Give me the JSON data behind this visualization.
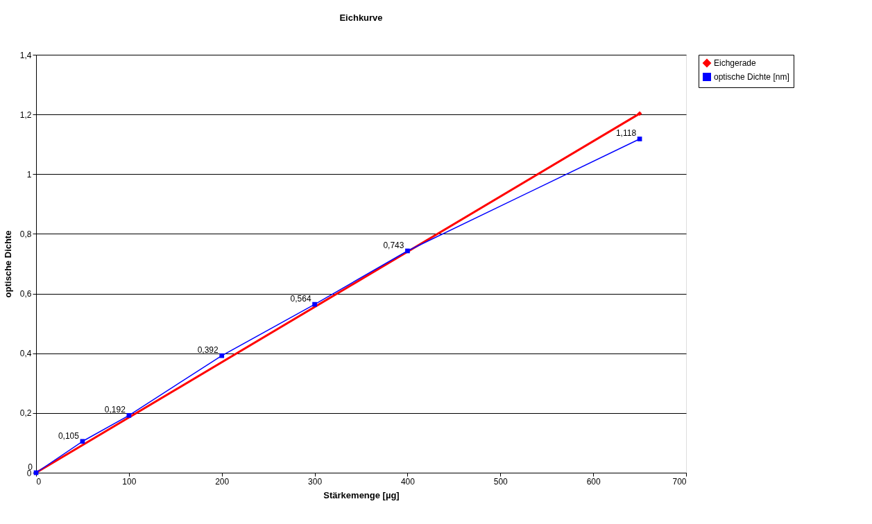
{
  "chart_data": {
    "type": "line",
    "title": "Eichkurve",
    "xlabel": "Stärkemenge [µg]",
    "ylabel": "optische Dichte",
    "xlim": [
      0,
      700
    ],
    "xticks": [
      0,
      100,
      200,
      300,
      400,
      500,
      600,
      700
    ],
    "ylim": [
      0,
      1.4
    ],
    "yticks": [
      0,
      {
        "value": 0.2,
        "label": "0,2"
      },
      {
        "value": 0.4,
        "label": "0,4"
      },
      {
        "value": 0.6,
        "label": "0,6"
      },
      {
        "value": 0.8,
        "label": "0,8"
      },
      1,
      {
        "value": 1.2,
        "label": "1,2"
      },
      {
        "value": 1.4,
        "label": "1,4"
      }
    ],
    "grid": "y",
    "legend": "right",
    "series": [
      {
        "name": "Eichgerade",
        "color": "#ff0000",
        "marker": "diamond",
        "x": [
          0,
          650
        ],
        "values": [
          0,
          1.203
        ]
      },
      {
        "name": "optische Dichte [nm]",
        "color": "#0000ff",
        "marker": "square",
        "x": [
          0,
          50,
          100,
          200,
          300,
          400,
          650
        ],
        "values": [
          0,
          0.105,
          0.192,
          0.392,
          0.564,
          0.743,
          1.118
        ],
        "value_labels": [
          "0",
          "0,105",
          "0,192",
          "0,392",
          "0,564",
          "0,743",
          "1,118"
        ]
      }
    ]
  }
}
